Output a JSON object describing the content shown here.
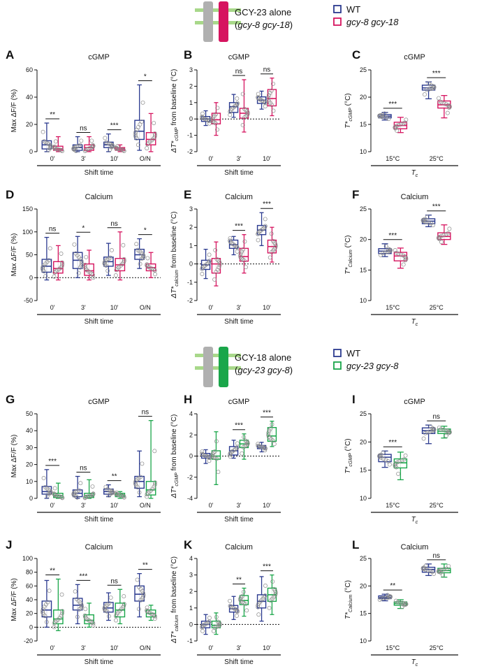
{
  "colors": {
    "wt": "#2b3a8f",
    "gcy8gcy18": "#d6145f",
    "gcy23gcy8": "#1aa64a",
    "gray": "#b0b0b0",
    "membrane": "#a8d88a",
    "point": "#8a8a8a"
  },
  "headers": [
    {
      "id": "top",
      "title": "GCY-23 alone",
      "subtitle_prefix": "(",
      "subtitle": "gcy-8 gcy-18",
      "subtitle_suffix": ")",
      "legend": [
        "WT",
        "gcy-8 gcy-18"
      ],
      "legend_italic": [
        false,
        true
      ],
      "channel_color": "#d6145f"
    },
    {
      "id": "bottom",
      "title": "GCY-18 alone",
      "subtitle_prefix": "(",
      "subtitle": "gcy-23 gcy-8",
      "subtitle_suffix": ")",
      "legend": [
        "WT",
        "gcy-23 gcy-8"
      ],
      "legend_italic": [
        false,
        true
      ],
      "channel_color": "#1aa64a"
    }
  ],
  "chart_data": [
    {
      "letter": "A",
      "type": "box",
      "title": "cGMP",
      "ylabel": "Max ΔF/F (%)",
      "ylim": [
        0,
        60
      ],
      "yticks": [
        0,
        20,
        40,
        60
      ],
      "baseline": null,
      "xtitle": "Shift time",
      "x_italic": false,
      "categories": [
        "0'",
        "3'",
        "10'",
        "O/N"
      ],
      "series": [
        {
          "name": "WT",
          "stats": [
            [
              0,
              2,
              5,
              8,
              21
            ],
            [
              0,
              1,
              3,
              5,
              11
            ],
            [
              0,
              3,
              5,
              7,
              13
            ],
            [
              1,
              9,
              15,
              23,
              49
            ]
          ]
        },
        {
          "name": "gcy-8 gcy-18",
          "stats": [
            [
              0,
              1,
              2,
              4,
              11
            ],
            [
              0,
              1,
              3,
              5,
              11
            ],
            [
              0,
              1,
              2,
              3,
              5
            ],
            [
              0,
              5,
              9,
              14,
              28
            ]
          ]
        }
      ],
      "significance": [
        "**",
        "ns",
        "***",
        "*"
      ]
    },
    {
      "letter": "B",
      "type": "box",
      "title": "cGMP",
      "ylabel": "ΔT*cGMP from baseline (°C)",
      "ylim": [
        -2,
        3
      ],
      "yticks": [
        -2,
        -1,
        0,
        1,
        2,
        3
      ],
      "baseline": 0,
      "xtitle": "Shift time",
      "x_italic": false,
      "categories": [
        "0'",
        "3'",
        "10'"
      ],
      "series": [
        {
          "name": "WT",
          "stats": [
            [
              -0.4,
              -0.15,
              0,
              0.15,
              0.5
            ],
            [
              0.1,
              0.4,
              0.75,
              1.0,
              1.5
            ],
            [
              0.6,
              0.95,
              1.15,
              1.35,
              1.7
            ]
          ]
        },
        {
          "name": "gcy-8 gcy-18",
          "stats": [
            [
              -1.0,
              -0.3,
              -0.05,
              0.35,
              1.0
            ],
            [
              -0.8,
              0.05,
              0.35,
              0.65,
              2.4
            ],
            [
              0.2,
              0.8,
              1.25,
              1.8,
              2.5
            ]
          ]
        }
      ],
      "significance": [
        null,
        "ns",
        "ns"
      ]
    },
    {
      "letter": "C",
      "type": "box",
      "title": "cGMP",
      "ylabel": "T*cGMP (°C)",
      "ylim": [
        10,
        25
      ],
      "yticks": [
        10,
        15,
        20,
        25
      ],
      "baseline": null,
      "xtitle": "Tc",
      "x_italic": true,
      "categories": [
        "15°C",
        "25°C"
      ],
      "series": [
        {
          "name": "WT",
          "stats": [
            [
              15.8,
              16.2,
              16.5,
              16.8,
              17.2
            ],
            [
              19.7,
              21.3,
              21.7,
              22.2,
              22.8
            ]
          ]
        },
        {
          "name": "gcy-8 gcy-18",
          "stats": [
            [
              13.5,
              14.2,
              14.8,
              15.4,
              16.3
            ],
            [
              16.2,
              18.0,
              18.6,
              19.3,
              20.3
            ]
          ]
        }
      ],
      "significance": [
        "***",
        "***"
      ]
    },
    {
      "letter": "D",
      "type": "box",
      "title": "Calcium",
      "ylabel": "Max ΔF/F (%)",
      "ylim": [
        -50,
        150
      ],
      "yticks": [
        -50,
        0,
        50,
        100,
        150
      ],
      "baseline": 0,
      "xtitle": "Shift time",
      "x_italic": false,
      "categories": [
        "0'",
        "3'",
        "10'",
        "O/N"
      ],
      "series": [
        {
          "name": "WT",
          "stats": [
            [
              -5,
              12,
              25,
              40,
              88
            ],
            [
              0,
              20,
              38,
              55,
              90
            ],
            [
              5,
              25,
              35,
              45,
              75
            ],
            [
              20,
              40,
              50,
              62,
              85
            ]
          ]
        },
        {
          "name": "gcy-8 gcy-18",
          "stats": [
            [
              -5,
              10,
              20,
              35,
              70
            ],
            [
              -5,
              5,
              15,
              30,
              60
            ],
            [
              -5,
              15,
              28,
              42,
              100
            ],
            [
              0,
              15,
              22,
              30,
              55
            ]
          ]
        }
      ],
      "significance": [
        "ns",
        "*",
        "ns",
        "*"
      ]
    },
    {
      "letter": "E",
      "type": "box",
      "title": "Calcium",
      "ylabel": "ΔT*calcium from baseline (°C)",
      "ylim": [
        -2,
        3
      ],
      "yticks": [
        -2,
        -1,
        0,
        1,
        2,
        3
      ],
      "baseline": 0,
      "xtitle": "Shift time",
      "x_italic": false,
      "categories": [
        "0'",
        "3'",
        "10'"
      ],
      "series": [
        {
          "name": "WT",
          "stats": [
            [
              -0.8,
              -0.3,
              -0.05,
              0.2,
              0.8
            ],
            [
              0.5,
              0.85,
              1.05,
              1.3,
              1.5
            ],
            [
              1.0,
              1.6,
              1.85,
              2.1,
              2.8
            ]
          ]
        },
        {
          "name": "gcy-8 gcy-18",
          "stats": [
            [
              -1.2,
              -0.5,
              0,
              0.3,
              1.2
            ],
            [
              -0.5,
              0.15,
              0.4,
              0.85,
              1.6
            ],
            [
              0.1,
              0.6,
              0.95,
              1.3,
              2.0
            ]
          ]
        }
      ],
      "significance": [
        null,
        "***",
        "***"
      ]
    },
    {
      "letter": "F",
      "type": "box",
      "title": "Calcium",
      "ylabel": "T*Calcium (°C)",
      "ylim": [
        10,
        25
      ],
      "yticks": [
        10,
        15,
        20,
        25
      ],
      "baseline": null,
      "xtitle": "Tc",
      "x_italic": true,
      "categories": [
        "15°C",
        "25°C"
      ],
      "series": [
        {
          "name": "WT",
          "stats": [
            [
              17.2,
              17.7,
              18.1,
              18.5,
              19.3
            ],
            [
              22.1,
              22.6,
              23.0,
              23.4,
              24.0
            ]
          ]
        },
        {
          "name": "gcy-8 gcy-18",
          "stats": [
            [
              15.3,
              16.5,
              17.3,
              17.9,
              18.6
            ],
            [
              19.2,
              20.0,
              20.5,
              21.1,
              22.4
            ]
          ]
        }
      ],
      "significance": [
        "***",
        "***"
      ]
    },
    {
      "letter": "G",
      "type": "box",
      "title": "cGMP",
      "ylabel": "Max ΔF/F (%)",
      "ylim": [
        0,
        50
      ],
      "yticks": [
        0,
        10,
        20,
        30,
        40,
        50
      ],
      "baseline": null,
      "xtitle": "Shift time",
      "x_italic": false,
      "categories": [
        "0'",
        "3'",
        "10'",
        "O/N"
      ],
      "series": [
        {
          "name": "WT",
          "stats": [
            [
              0,
              2.5,
              4,
              7,
              17
            ],
            [
              0,
              1,
              3,
              5,
              13
            ],
            [
              1,
              2.5,
              4,
              5.5,
              8
            ],
            [
              1,
              6,
              10,
              13,
              28
            ]
          ]
        },
        {
          "name": "gcy-23 gcy-8",
          "stats": [
            [
              0,
              0.5,
              1.5,
              3,
              9
            ],
            [
              0,
              0.5,
              1.5,
              3,
              11
            ],
            [
              0,
              1,
              2,
              3,
              4
            ],
            [
              0,
              2,
              5,
              10,
              46
            ]
          ]
        }
      ],
      "significance": [
        "***",
        "ns",
        "**",
        "ns"
      ]
    },
    {
      "letter": "H",
      "type": "box",
      "title": "cGMP",
      "ylabel": "ΔT*cGMP from baseline (°C)",
      "ylim": [
        -4,
        4
      ],
      "yticks": [
        -4,
        -2,
        0,
        2,
        4
      ],
      "baseline": 0,
      "xtitle": "Shift time",
      "x_italic": false,
      "categories": [
        "0'",
        "3'",
        "10'"
      ],
      "series": [
        {
          "name": "WT",
          "stats": [
            [
              -0.7,
              -0.2,
              0,
              0.25,
              0.6
            ],
            [
              -0.2,
              0.1,
              0.5,
              0.9,
              1.5
            ],
            [
              0.4,
              0.7,
              0.85,
              1.0,
              1.3
            ]
          ]
        },
        {
          "name": "gcy-23 gcy-8",
          "stats": [
            [
              -2.7,
              -0.3,
              0,
              0.5,
              2.3
            ],
            [
              -0.3,
              0.8,
              1.15,
              1.5,
              2.1
            ],
            [
              0.9,
              1.4,
              1.9,
              2.7,
              3.3
            ]
          ]
        }
      ],
      "significance": [
        null,
        "***",
        "***"
      ]
    },
    {
      "letter": "I",
      "type": "box",
      "title": "cGMP",
      "ylabel": "T*cGMP (°C)",
      "ylim": [
        10,
        25
      ],
      "yticks": [
        10,
        15,
        20,
        25
      ],
      "baseline": null,
      "xtitle": "Tc",
      "x_italic": true,
      "categories": [
        "15°C",
        "25°C"
      ],
      "series": [
        {
          "name": "WT",
          "stats": [
            [
              15.5,
              16.5,
              17.3,
              17.8,
              18.4
            ],
            [
              19.7,
              21.5,
              22.0,
              22.5,
              23.0
            ]
          ]
        },
        {
          "name": "gcy-23 gcy-8",
          "stats": [
            [
              13.3,
              15.4,
              16.3,
              17.0,
              18.2
            ],
            [
              20.7,
              21.5,
              21.9,
              22.3,
              22.8
            ]
          ]
        }
      ],
      "significance": [
        "***",
        "ns"
      ]
    },
    {
      "letter": "J",
      "type": "box",
      "title": "Calcium",
      "ylabel": "Max ΔF/F (%)",
      "ylim": [
        -20,
        100
      ],
      "yticks": [
        -20,
        0,
        20,
        40,
        60,
        80,
        100
      ],
      "baseline": 0,
      "xtitle": "Shift time",
      "x_italic": false,
      "categories": [
        "0'",
        "3'",
        "10'",
        "O/N"
      ],
      "series": [
        {
          "name": "WT",
          "stats": [
            [
              0,
              15,
              25,
              38,
              68
            ],
            [
              5,
              25,
              32,
              42,
              62
            ],
            [
              10,
              22,
              28,
              36,
              50
            ],
            [
              15,
              38,
              48,
              60,
              78
            ]
          ]
        },
        {
          "name": "gcy-23 gcy-8",
          "stats": [
            [
              -5,
              5,
              12,
              25,
              70
            ],
            [
              0,
              5,
              10,
              18,
              35
            ],
            [
              5,
              15,
              25,
              35,
              55
            ],
            [
              10,
              15,
              20,
              25,
              32
            ]
          ]
        }
      ],
      "significance": [
        "**",
        "***",
        "ns",
        "**"
      ]
    },
    {
      "letter": "K",
      "type": "box",
      "title": "Calcium",
      "ylabel": "ΔT*calcium from baseline (°C)",
      "ylim": [
        -1,
        4
      ],
      "yticks": [
        -1,
        0,
        1,
        2,
        3,
        4
      ],
      "baseline": 0,
      "xtitle": "Shift time",
      "x_italic": false,
      "categories": [
        "0'",
        "3'",
        "10'"
      ],
      "series": [
        {
          "name": "WT",
          "stats": [
            [
              -0.6,
              -0.2,
              0,
              0.2,
              0.6
            ],
            [
              0.3,
              0.75,
              0.95,
              1.15,
              1.7
            ],
            [
              0.2,
              1.0,
              1.4,
              1.8,
              2.9
            ]
          ]
        },
        {
          "name": "gcy-23 gcy-8",
          "stats": [
            [
              -0.6,
              -0.2,
              -0.05,
              0.2,
              0.7
            ],
            [
              0.5,
              1.2,
              1.45,
              1.75,
              2.2
            ],
            [
              0.6,
              1.4,
              1.8,
              2.2,
              3.0
            ]
          ]
        }
      ],
      "significance": [
        null,
        "**",
        "***"
      ]
    },
    {
      "letter": "L",
      "type": "box",
      "title": "Calcium",
      "ylabel": "T*Calcium (°C)",
      "ylim": [
        10,
        25
      ],
      "yticks": [
        10,
        15,
        20,
        25
      ],
      "baseline": null,
      "xtitle": "Tc",
      "x_italic": true,
      "categories": [
        "15°C",
        "25°C"
      ],
      "series": [
        {
          "name": "WT",
          "stats": [
            [
              17.3,
              17.7,
              17.9,
              18.2,
              18.5
            ],
            [
              21.9,
              22.5,
              23.0,
              23.4,
              24.0
            ]
          ]
        },
        {
          "name": "gcy-23 gcy-8",
          "stats": [
            [
              15.9,
              16.5,
              16.8,
              17.1,
              17.5
            ],
            [
              21.6,
              22.4,
              22.8,
              23.2,
              24.0
            ]
          ]
        }
      ],
      "significance": [
        "**",
        "ns"
      ]
    }
  ]
}
